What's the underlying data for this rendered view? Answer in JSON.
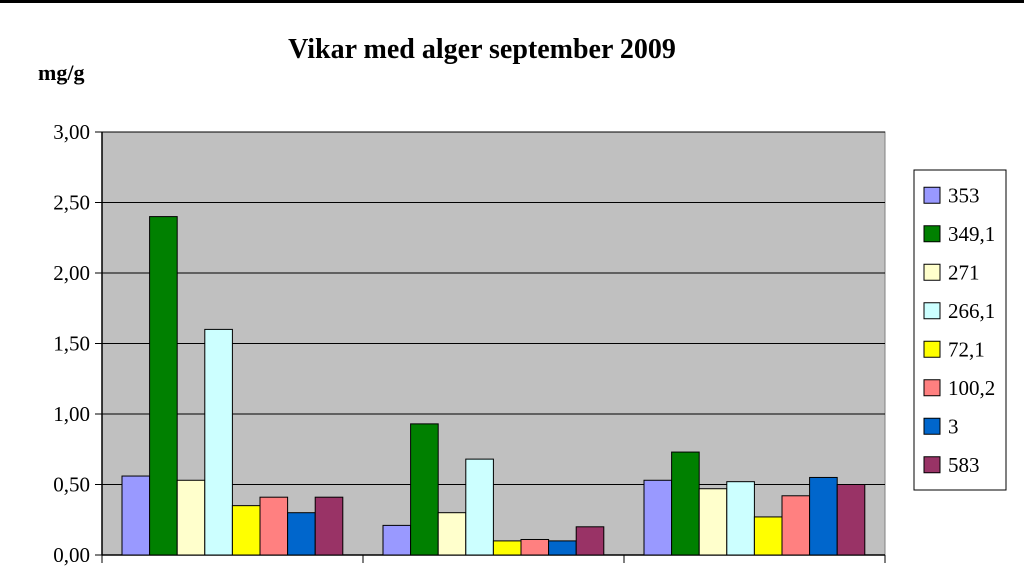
{
  "chart_data": {
    "type": "bar",
    "title": "Vikar med alger september 2009",
    "ylabel": "mg/g",
    "xlabel": "",
    "ylim": [
      0,
      3
    ],
    "y_ticks": [
      "0,00",
      "0,50",
      "1,00",
      "1,50",
      "2,00",
      "2,50",
      "3,00"
    ],
    "categories": [
      "",
      "",
      ""
    ],
    "grid": true,
    "legend_position": "right",
    "series": [
      {
        "name": "353",
        "color": "#9999FF",
        "values": [
          0.56,
          0.21,
          0.53
        ]
      },
      {
        "name": "349,1",
        "color": "#008000",
        "values": [
          2.4,
          0.93,
          0.73
        ]
      },
      {
        "name": "271",
        "color": "#FFFFCC",
        "values": [
          0.53,
          0.3,
          0.47
        ]
      },
      {
        "name": "266,1",
        "color": "#CCFFFF",
        "values": [
          1.6,
          0.68,
          0.52
        ]
      },
      {
        "name": "72,1",
        "color": "#FFFF00",
        "values": [
          0.35,
          0.1,
          0.27
        ]
      },
      {
        "name": "100,2",
        "color": "#FF8080",
        "values": [
          0.41,
          0.11,
          0.42
        ]
      },
      {
        "name": "3",
        "color": "#0066CC",
        "values": [
          0.3,
          0.1,
          0.55
        ]
      },
      {
        "name": "583",
        "color": "#993366",
        "values": [
          0.41,
          0.2,
          0.5
        ]
      }
    ],
    "plot_background": "#C0C0C0"
  }
}
